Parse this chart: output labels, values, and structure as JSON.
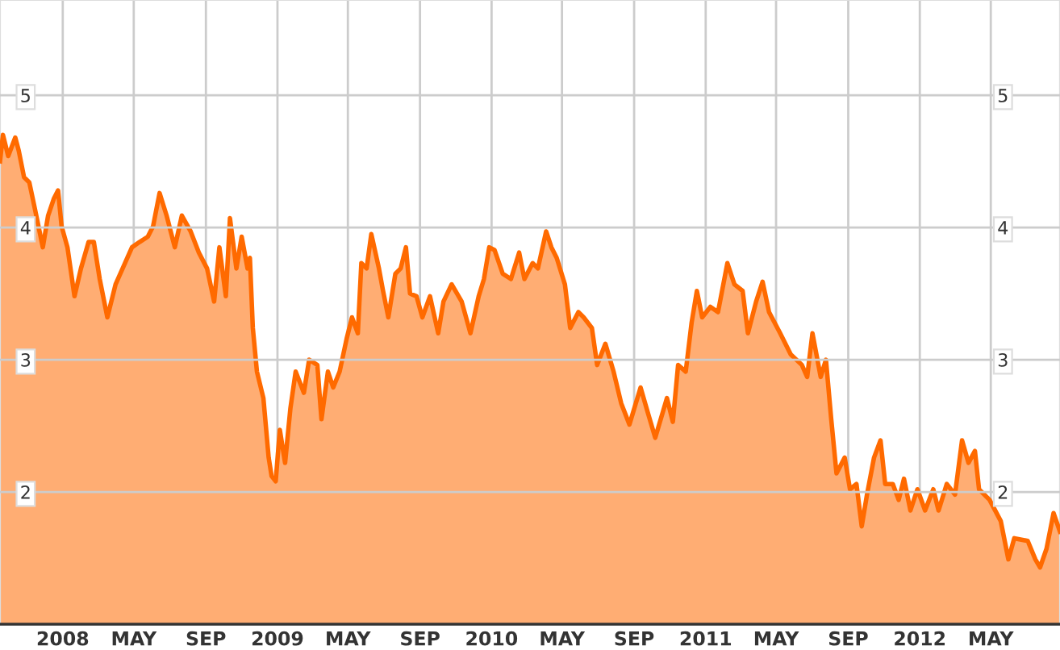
{
  "chart_data": {
    "type": "area",
    "series": [
      {
        "color": "#ff6a00",
        "x": [
          "2007-09-16",
          "2007-09-21",
          "2007-09-30",
          "2007-10-12",
          "2007-10-18",
          "2007-10-27",
          "2007-11-05",
          "2007-11-15",
          "2007-11-28",
          "2007-12-07",
          "2007-12-17",
          "2007-12-24",
          "2007-12-30",
          "2008-01-09",
          "2008-01-21",
          "2008-02-01",
          "2008-02-14",
          "2008-02-23",
          "2008-03-04",
          "2008-03-17",
          "2008-03-31",
          "2008-04-16",
          "2008-04-28",
          "2008-05-11",
          "2008-05-25",
          "2008-06-03",
          "2008-06-14",
          "2008-06-26",
          "2008-07-10",
          "2008-07-22",
          "2008-08-06",
          "2008-08-20",
          "2008-09-03",
          "2008-09-15",
          "2008-09-24",
          "2008-10-05",
          "2008-10-12",
          "2008-10-23",
          "2008-11-01",
          "2008-11-11",
          "2008-11-15",
          "2008-11-20",
          "2008-11-27",
          "2008-12-08",
          "2008-12-17",
          "2008-12-22",
          "2008-12-29",
          "2009-01-05",
          "2009-01-14",
          "2009-01-23",
          "2009-02-01",
          "2009-02-15",
          "2009-02-24",
          "2009-03-10",
          "2009-03-17",
          "2009-03-28",
          "2009-04-06",
          "2009-04-17",
          "2009-04-29",
          "2009-05-08",
          "2009-05-18",
          "2009-05-24",
          "2009-06-02",
          "2009-06-10",
          "2009-06-23",
          "2009-06-30",
          "2009-07-09",
          "2009-07-21",
          "2009-07-30",
          "2009-08-08",
          "2009-08-15",
          "2009-08-26",
          "2009-09-05",
          "2009-09-18",
          "2009-10-02",
          "2009-10-11",
          "2009-10-25",
          "2009-11-11",
          "2009-11-26",
          "2009-12-10",
          "2009-12-19",
          "2009-12-28",
          "2010-01-06",
          "2010-01-20",
          "2010-02-03",
          "2010-02-17",
          "2010-02-26",
          "2010-03-12",
          "2010-03-21",
          "2010-04-04",
          "2010-04-13",
          "2010-04-22",
          "2010-05-06",
          "2010-05-15",
          "2010-05-29",
          "2010-06-07",
          "2010-06-21",
          "2010-06-30",
          "2010-07-14",
          "2010-07-28",
          "2010-08-10",
          "2010-08-24",
          "2010-09-12",
          "2010-09-25",
          "2010-10-07",
          "2010-10-27",
          "2010-11-06",
          "2010-11-15",
          "2010-11-28",
          "2010-12-08",
          "2010-12-17",
          "2010-12-26",
          "2011-01-09",
          "2011-01-22",
          "2011-02-07",
          "2011-02-19",
          "2011-03-05",
          "2011-03-14",
          "2011-03-28",
          "2011-04-08",
          "2011-04-19",
          "2011-05-08",
          "2011-05-26",
          "2011-06-14",
          "2011-06-23",
          "2011-07-02",
          "2011-07-16",
          "2011-07-25",
          "2011-08-03",
          "2011-08-12",
          "2011-08-26",
          "2011-09-04",
          "2011-09-15",
          "2011-09-24",
          "2011-10-03",
          "2011-10-15",
          "2011-10-26",
          "2011-11-03",
          "2011-11-16",
          "2011-11-26",
          "2011-12-05",
          "2011-12-16",
          "2011-12-28",
          "2012-01-10",
          "2012-01-24",
          "2012-02-02",
          "2012-02-16",
          "2012-03-01",
          "2012-03-13",
          "2012-03-24",
          "2012-04-04",
          "2012-04-11",
          "2012-04-29",
          "2012-05-18",
          "2012-05-31",
          "2012-06-10",
          "2012-07-03",
          "2012-07-16",
          "2012-07-24",
          "2012-08-04",
          "2012-08-16",
          "2012-08-27"
        ],
        "values": [
          4.5,
          4.7,
          4.54,
          4.68,
          4.58,
          4.38,
          4.34,
          4.13,
          3.85,
          4.09,
          4.22,
          4.28,
          4.01,
          3.85,
          3.48,
          3.69,
          3.89,
          3.89,
          3.61,
          3.32,
          3.57,
          3.73,
          3.85,
          3.89,
          3.93,
          4.01,
          4.26,
          4.09,
          3.85,
          4.09,
          3.97,
          3.81,
          3.69,
          3.44,
          3.85,
          3.48,
          4.07,
          3.69,
          3.93,
          3.69,
          3.77,
          3.24,
          2.91,
          2.71,
          2.26,
          2.12,
          2.08,
          2.47,
          2.22,
          2.63,
          2.91,
          2.75,
          3.0,
          2.96,
          2.55,
          2.91,
          2.79,
          2.91,
          3.16,
          3.32,
          3.2,
          3.73,
          3.69,
          3.95,
          3.69,
          3.52,
          3.32,
          3.65,
          3.69,
          3.85,
          3.5,
          3.48,
          3.32,
          3.48,
          3.2,
          3.44,
          3.57,
          3.44,
          3.2,
          3.48,
          3.61,
          3.85,
          3.83,
          3.65,
          3.61,
          3.81,
          3.61,
          3.73,
          3.69,
          3.97,
          3.85,
          3.77,
          3.57,
          3.24,
          3.36,
          3.32,
          3.24,
          2.96,
          3.12,
          2.91,
          2.67,
          2.51,
          2.79,
          2.59,
          2.41,
          2.71,
          2.53,
          2.96,
          2.91,
          3.28,
          3.52,
          3.32,
          3.4,
          3.36,
          3.73,
          3.57,
          3.52,
          3.2,
          3.44,
          3.59,
          3.36,
          3.2,
          3.04,
          2.96,
          2.87,
          3.2,
          2.87,
          3.0,
          2.55,
          2.14,
          2.26,
          2.02,
          2.06,
          1.74,
          1.98,
          2.26,
          2.39,
          2.06,
          2.06,
          1.94,
          2.1,
          1.86,
          2.02,
          1.86,
          2.02,
          1.86,
          2.06,
          1.98,
          2.39,
          2.22,
          2.31,
          2.02,
          1.94,
          1.78,
          1.49,
          1.65,
          1.63,
          1.49,
          1.43,
          1.57,
          1.84,
          1.7
        ]
      }
    ],
    "xlim": [
      "2007-09-16",
      "2012-08-27"
    ],
    "xticks": [
      {
        "value": "2008-01-01",
        "label": "2008"
      },
      {
        "value": "2008-05-01",
        "label": "MAY"
      },
      {
        "value": "2008-09-01",
        "label": "SEP"
      },
      {
        "value": "2009-01-01",
        "label": "2009"
      },
      {
        "value": "2009-05-01",
        "label": "MAY"
      },
      {
        "value": "2009-09-01",
        "label": "SEP"
      },
      {
        "value": "2010-01-01",
        "label": "2010"
      },
      {
        "value": "2010-05-01",
        "label": "MAY"
      },
      {
        "value": "2010-09-01",
        "label": "SEP"
      },
      {
        "value": "2011-01-01",
        "label": "2011"
      },
      {
        "value": "2011-05-01",
        "label": "MAY"
      },
      {
        "value": "2011-09-01",
        "label": "SEP"
      },
      {
        "value": "2012-01-01",
        "label": "2012"
      },
      {
        "value": "2012-05-01",
        "label": "MAY"
      }
    ],
    "ylim": [
      1,
      5.72
    ],
    "yticks": [
      2,
      3,
      4,
      5
    ],
    "y2lim": [
      1,
      5.72
    ],
    "y2ticks": [
      2,
      3,
      4,
      5
    ],
    "grid": true
  }
}
